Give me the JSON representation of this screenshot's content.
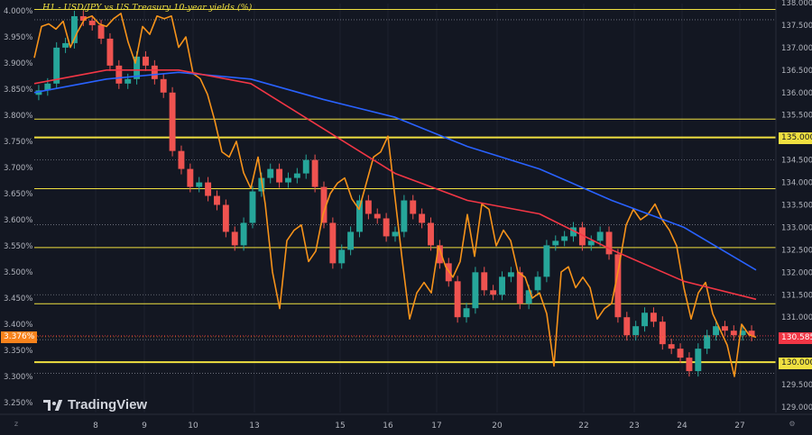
{
  "chart_data": {
    "type": "line",
    "title": "H1 - USD/JPY vs US Treasury 10-year yields (%)",
    "x_ticks": [
      "8",
      "9",
      "10",
      "13",
      "15",
      "16",
      "17",
      "20",
      "22",
      "23",
      "24",
      "27"
    ],
    "left_axis": {
      "ticks": [
        "4.000%",
        "3.950%",
        "3.900%",
        "3.850%",
        "3.800%",
        "3.750%",
        "3.700%",
        "3.650%",
        "3.600%",
        "3.550%",
        "3.500%",
        "3.450%",
        "3.400%",
        "3.350%",
        "3.300%",
        "3.250%"
      ],
      "current_label": "3.376%"
    },
    "right_axis": {
      "ticks": [
        "138.000",
        "137.500",
        "137.000",
        "136.500",
        "136.000",
        "135.500",
        "135.000",
        "134.500",
        "134.000",
        "133.500",
        "133.000",
        "132.500",
        "132.000",
        "131.500",
        "131.000",
        "130.500",
        "130.000",
        "129.500",
        "129.000"
      ],
      "current_label": "130.585",
      "level_labels": [
        "135.000",
        "130.000"
      ]
    },
    "horizontal_levels": {
      "thick": [
        135.0,
        130.0
      ],
      "thin": [
        137.85,
        135.41,
        133.86,
        132.55,
        131.3
      ],
      "dotted": [
        137.62,
        134.5,
        133.06,
        131.5,
        130.5,
        129.75
      ]
    },
    "series": [
      {
        "color": "#f7931a",
        "axis": "left",
        "x": [
          0,
          1,
          2,
          3,
          4,
          5,
          6,
          7,
          8,
          9,
          10,
          11,
          12,
          13,
          14,
          15,
          16,
          17,
          18,
          19,
          20,
          21,
          22,
          23,
          24,
          25,
          26,
          27,
          28,
          29,
          30,
          31,
          32,
          33,
          34,
          35,
          36,
          37,
          38,
          39,
          40,
          41,
          42,
          43,
          44,
          45,
          46,
          47,
          48,
          49,
          50,
          51,
          52,
          53,
          54,
          55,
          56,
          57,
          58,
          59,
          60,
          61,
          62,
          63,
          64,
          65,
          66,
          67,
          68,
          69,
          70,
          71,
          72,
          73,
          74,
          75,
          76,
          77,
          78,
          79,
          80,
          81,
          82,
          83,
          84,
          85,
          86,
          87,
          88,
          89,
          90,
          91,
          92,
          93,
          94,
          95,
          96,
          97,
          98,
          99,
          100
        ],
        "values": [
          3.91,
          3.97,
          3.975,
          3.965,
          3.98,
          3.93,
          3.96,
          3.985,
          3.99,
          3.975,
          3.97,
          3.985,
          3.995,
          3.94,
          3.9,
          3.97,
          3.955,
          3.99,
          3.985,
          3.99,
          3.93,
          3.95,
          3.88,
          3.87,
          3.84,
          3.79,
          3.73,
          3.72,
          3.75,
          3.69,
          3.66,
          3.72,
          3.63,
          3.5,
          3.43,
          3.56,
          3.58,
          3.59,
          3.52,
          3.54,
          3.61,
          3.65,
          3.67,
          3.68,
          3.64,
          3.62,
          3.67,
          3.72,
          3.73,
          3.76,
          3.64,
          3.52,
          3.41,
          3.46,
          3.48,
          3.46,
          3.55,
          3.51,
          3.49,
          3.52,
          3.61,
          3.53,
          3.63,
          3.62,
          3.55,
          3.58,
          3.56,
          3.5,
          3.49,
          3.45,
          3.46,
          3.42,
          3.32,
          3.5,
          3.51,
          3.47,
          3.49,
          3.47,
          3.41,
          3.43,
          3.44,
          3.51,
          3.59,
          3.62,
          3.6,
          3.61,
          3.63,
          3.6,
          3.58,
          3.55,
          3.47,
          3.41,
          3.46,
          3.48,
          3.42,
          3.39,
          3.36,
          3.3,
          3.4,
          3.38,
          3.375
        ]
      },
      {
        "color": "#2962ff",
        "axis": "right",
        "x": [
          0,
          10,
          20,
          30,
          40,
          50,
          60,
          70,
          80,
          90,
          100
        ],
        "values": [
          136.0,
          136.3,
          136.45,
          136.3,
          135.85,
          135.45,
          134.8,
          134.3,
          133.6,
          133.0,
          132.05
        ]
      },
      {
        "color": "#f23645",
        "axis": "right",
        "x": [
          0,
          10,
          20,
          30,
          40,
          50,
          60,
          70,
          80,
          90,
          100
        ],
        "values": [
          136.2,
          136.5,
          136.5,
          136.2,
          135.2,
          134.2,
          133.6,
          133.3,
          132.5,
          131.8,
          131.4
        ]
      }
    ],
    "price_close": [
      136.05,
      136.2,
      137.0,
      137.1,
      137.7,
      137.6,
      137.5,
      137.2,
      136.6,
      136.2,
      136.3,
      136.8,
      136.6,
      136.3,
      136.0,
      134.7,
      134.3,
      133.9,
      134.0,
      133.7,
      133.5,
      132.9,
      132.6,
      133.1,
      133.8,
      134.1,
      134.3,
      134.0,
      134.1,
      134.2,
      134.5,
      133.9,
      133.1,
      132.2,
      132.5,
      132.9,
      133.6,
      133.3,
      133.2,
      132.8,
      132.9,
      133.6,
      133.3,
      133.1,
      132.6,
      132.2,
      131.8,
      131.0,
      131.2,
      132.0,
      131.6,
      131.5,
      131.9,
      132.0,
      131.3,
      131.6,
      131.9,
      132.6,
      132.7,
      132.8,
      133.0,
      132.6,
      132.7,
      132.9,
      132.4,
      131.0,
      130.6,
      130.8,
      131.1,
      130.9,
      130.4,
      130.3,
      130.1,
      129.8,
      130.3,
      130.6,
      130.8,
      130.7,
      130.6,
      130.7,
      130.585
    ]
  },
  "branding": {
    "logo_text": "TradingView"
  },
  "colors": {
    "background": "#131722",
    "grid": "#1e222d",
    "axis_text": "#b2b5be",
    "level": "#f0e040",
    "up": "#26a69a",
    "down": "#ef5350"
  }
}
